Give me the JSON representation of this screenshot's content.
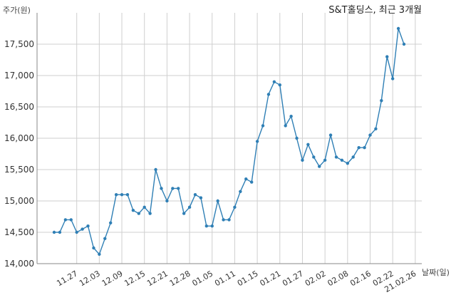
{
  "chart_data": {
    "type": "line",
    "title": "S&T홀딩스, 최근 3개월",
    "ylabel": "주가(원)",
    "xlabel": "날짜(일)",
    "ylim": [
      14000,
      18000
    ],
    "yticks": [
      14000,
      14500,
      15000,
      15500,
      16000,
      16500,
      17000,
      17500
    ],
    "ytick_labels": [
      "14,000",
      "14,500",
      "15,000",
      "15,500",
      "16,000",
      "16,500",
      "17,000",
      "17,500"
    ],
    "xtick_labels": [
      "11.27",
      "12.03",
      "12.09",
      "12.15",
      "12.21",
      "12.28",
      "01.05",
      "01.11",
      "01.15",
      "01.21",
      "01.27",
      "02.02",
      "02.08",
      "02.16",
      "02.22",
      "21.02.26"
    ],
    "xtick_index": [
      4,
      8,
      12,
      16,
      20,
      24,
      28,
      32,
      36,
      40,
      44,
      48,
      52,
      56,
      60,
      64
    ],
    "grid": true,
    "color": "#2f7fb5",
    "series": [
      {
        "values": [
          14500,
          14500,
          14700,
          14700,
          14500,
          14550,
          14600,
          14250,
          14150,
          14400,
          14650,
          15100,
          15100,
          15100,
          14850,
          14800,
          14900,
          14800,
          15500,
          15200,
          15000,
          15200,
          15200,
          14800,
          14900,
          15100,
          15050,
          14600,
          14600,
          15000,
          14700,
          14700,
          14900,
          15150,
          15350,
          15300,
          15950,
          16200,
          16700,
          16900,
          16850,
          16200,
          16350,
          16000,
          15650,
          15900,
          15700,
          15550,
          15650,
          16050,
          15700,
          15650,
          15600,
          15700,
          15850,
          15850,
          16050,
          16150,
          16600,
          17300,
          16950,
          17750,
          17500
        ]
      }
    ]
  }
}
